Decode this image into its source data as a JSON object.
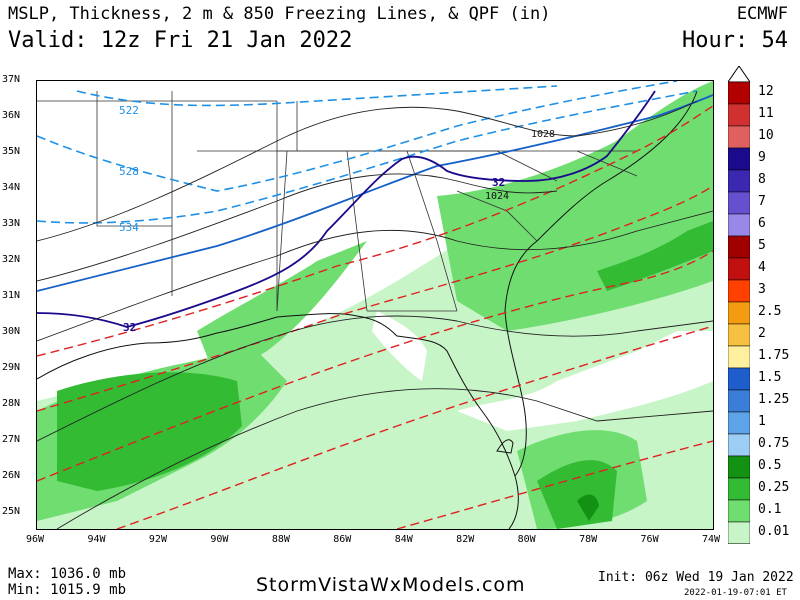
{
  "header": {
    "title": "MSLP, Thickness, 2 m & 850 Freezing Lines, & QPF (in)",
    "model": "ECMWF",
    "valid": "Valid: 12z Fri 21 Jan 2022",
    "hour": "Hour: 54"
  },
  "latitudes": [
    "37N",
    "36N",
    "35N",
    "34N",
    "33N",
    "32N",
    "31N",
    "30N",
    "29N",
    "28N",
    "27N",
    "26N",
    "25N"
  ],
  "longitudes": [
    "96W",
    "94W",
    "92W",
    "90W",
    "88W",
    "86W",
    "84W",
    "82W",
    "80W",
    "78W",
    "76W",
    "74W"
  ],
  "legend": {
    "levels": [
      "12",
      "11",
      "10",
      "9",
      "8",
      "7",
      "6",
      "5",
      "4",
      "3",
      "2.5",
      "2",
      "1.75",
      "1.5",
      "1.25",
      "1",
      "0.75",
      "0.5",
      "0.25",
      "0.1",
      "0.01"
    ],
    "colors": [
      "#b00000",
      "#d03030",
      "#e06060",
      "#1a0a8c",
      "#3a28b0",
      "#6650d0",
      "#9a88e8",
      "#a00000",
      "#c01010",
      "#ff4000",
      "#f39c12",
      "#f8c040",
      "#fff0a0",
      "#1f5ccc",
      "#3a7ed8",
      "#5ea2e8",
      "#9ccdf5",
      "#139113",
      "#34bb34",
      "#70dd70",
      "#c8f5c8"
    ]
  },
  "map_labels": {
    "thickness": [
      "522",
      "528",
      "534"
    ],
    "freezing_850": [
      "32",
      "32"
    ],
    "isobars": [
      "1028",
      "1024"
    ]
  },
  "footer": {
    "max": "Max: 1036.0 mb",
    "min": "Min: 1015.9 mb",
    "site": "StormVistaWxModels.com",
    "init": "Init: 06z Wed 19 Jan 2022",
    "generated": "2022-01-19-07:01 ET"
  }
}
